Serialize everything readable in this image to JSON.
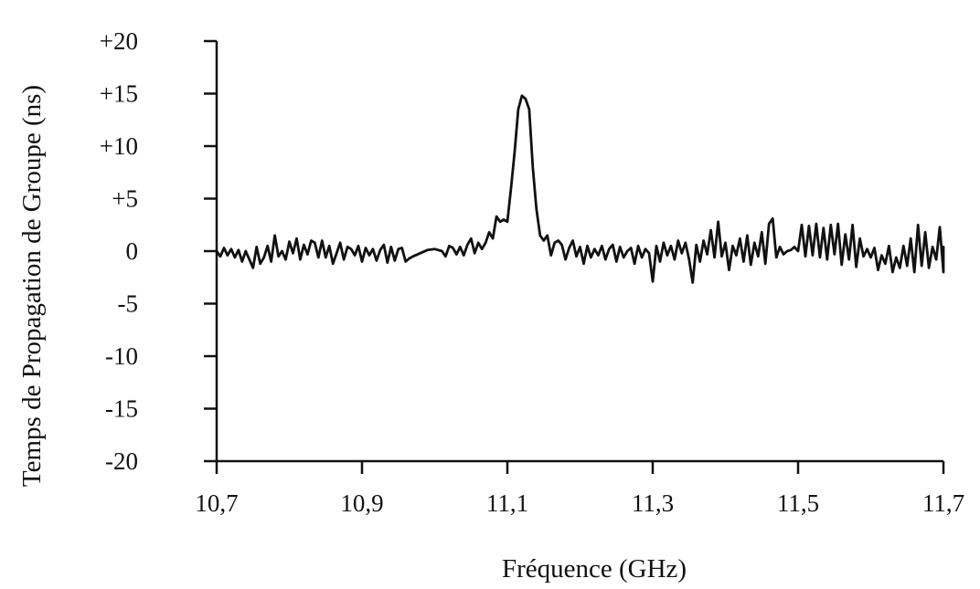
{
  "chart_data": {
    "type": "line",
    "title": "",
    "xlabel": "Fréquence (GHz)",
    "ylabel": "Temps de Propagation de Groupe (ns)",
    "xlim": [
      10.7,
      11.7
    ],
    "ylim": [
      -20,
      20
    ],
    "grid": false,
    "x_ticks": [
      10.7,
      10.9,
      11.1,
      11.3,
      11.5,
      11.7
    ],
    "x_tick_labels": [
      "10,7",
      "10,9",
      "11,1",
      "11,3",
      "11,5",
      "11,7"
    ],
    "y_ticks": [
      20,
      15,
      10,
      5,
      0,
      -5,
      -10,
      -15,
      -20
    ],
    "y_tick_labels": [
      "+20",
      "+15",
      "+10",
      "+5",
      "0",
      "-5",
      "-10",
      "-15",
      "-20"
    ],
    "series": [
      {
        "color": "#111111",
        "points": [
          [
            10.7,
            0.0
          ],
          [
            10.705,
            -0.5
          ],
          [
            10.71,
            0.3
          ],
          [
            10.715,
            -0.4
          ],
          [
            10.72,
            0.2
          ],
          [
            10.725,
            -0.6
          ],
          [
            10.73,
            0.1
          ],
          [
            10.735,
            -1.0
          ],
          [
            10.74,
            0.0
          ],
          [
            10.745,
            -0.8
          ],
          [
            10.75,
            -1.6
          ],
          [
            10.755,
            0.4
          ],
          [
            10.76,
            -1.2
          ],
          [
            10.765,
            -0.6
          ],
          [
            10.77,
            0.5
          ],
          [
            10.775,
            -1.0
          ],
          [
            10.78,
            1.5
          ],
          [
            10.785,
            -0.5
          ],
          [
            10.79,
            0.0
          ],
          [
            10.795,
            -0.8
          ],
          [
            10.8,
            0.9
          ],
          [
            10.805,
            -0.2
          ],
          [
            10.81,
            1.2
          ],
          [
            10.815,
            -0.8
          ],
          [
            10.82,
            0.6
          ],
          [
            10.825,
            -0.3
          ],
          [
            10.83,
            1.0
          ],
          [
            10.835,
            0.8
          ],
          [
            10.84,
            -0.6
          ],
          [
            10.845,
            1.0
          ],
          [
            10.85,
            -0.6
          ],
          [
            10.855,
            0.5
          ],
          [
            10.86,
            -1.2
          ],
          [
            10.865,
            -0.2
          ],
          [
            10.87,
            0.8
          ],
          [
            10.875,
            -0.8
          ],
          [
            10.88,
            0.4
          ],
          [
            10.885,
            0.2
          ],
          [
            10.89,
            -0.4
          ],
          [
            10.895,
            0.5
          ],
          [
            10.9,
            -1.0
          ],
          [
            10.905,
            0.3
          ],
          [
            10.91,
            -0.4
          ],
          [
            10.915,
            0.2
          ],
          [
            10.92,
            -0.9
          ],
          [
            10.925,
            0.1
          ],
          [
            10.93,
            0.6
          ],
          [
            10.935,
            -1.1
          ],
          [
            10.94,
            0.4
          ],
          [
            10.945,
            -0.9
          ],
          [
            10.95,
            0.2
          ],
          [
            10.955,
            0.3
          ],
          [
            10.96,
            -1.0
          ],
          [
            10.965,
            -0.7
          ],
          [
            10.97,
            -0.5
          ],
          [
            10.98,
            -0.2
          ],
          [
            10.99,
            0.1
          ],
          [
            11.0,
            0.2
          ],
          [
            11.01,
            0.0
          ],
          [
            11.015,
            -0.5
          ],
          [
            11.02,
            0.5
          ],
          [
            11.025,
            0.3
          ],
          [
            11.03,
            -0.3
          ],
          [
            11.035,
            0.4
          ],
          [
            11.04,
            -0.4
          ],
          [
            11.045,
            0.6
          ],
          [
            11.05,
            1.2
          ],
          [
            11.055,
            -0.2
          ],
          [
            11.06,
            0.8
          ],
          [
            11.065,
            0.2
          ],
          [
            11.07,
            0.8
          ],
          [
            11.075,
            1.8
          ],
          [
            11.08,
            1.2
          ],
          [
            11.085,
            3.3
          ],
          [
            11.09,
            2.8
          ],
          [
            11.095,
            3.0
          ],
          [
            11.1,
            2.8
          ],
          [
            11.105,
            6.0
          ],
          [
            11.11,
            9.5
          ],
          [
            11.115,
            13.5
          ],
          [
            11.12,
            14.8
          ],
          [
            11.125,
            14.5
          ],
          [
            11.13,
            13.5
          ],
          [
            11.135,
            8.0
          ],
          [
            11.14,
            4.0
          ],
          [
            11.145,
            1.5
          ],
          [
            11.15,
            1.0
          ],
          [
            11.155,
            1.5
          ],
          [
            11.16,
            -0.4
          ],
          [
            11.165,
            0.8
          ],
          [
            11.17,
            1.0
          ],
          [
            11.175,
            0.6
          ],
          [
            11.18,
            -0.8
          ],
          [
            11.185,
            0.3
          ],
          [
            11.19,
            1.0
          ],
          [
            11.195,
            -0.5
          ],
          [
            11.2,
            0.4
          ],
          [
            11.205,
            -1.2
          ],
          [
            11.21,
            0.5
          ],
          [
            11.215,
            -0.6
          ],
          [
            11.22,
            0.2
          ],
          [
            11.225,
            -0.4
          ],
          [
            11.23,
            0.5
          ],
          [
            11.235,
            -0.8
          ],
          [
            11.24,
            0.2
          ],
          [
            11.245,
            0.6
          ],
          [
            11.25,
            -1.0
          ],
          [
            11.255,
            0.4
          ],
          [
            11.26,
            -0.6
          ],
          [
            11.265,
            0.0
          ],
          [
            11.27,
            0.3
          ],
          [
            11.275,
            -1.2
          ],
          [
            11.28,
            0.5
          ],
          [
            11.285,
            -0.6
          ],
          [
            11.29,
            0.2
          ],
          [
            11.295,
            -0.2
          ],
          [
            11.3,
            -2.9
          ],
          [
            11.305,
            0.5
          ],
          [
            11.31,
            -1.0
          ],
          [
            11.315,
            0.8
          ],
          [
            11.32,
            -0.4
          ],
          [
            11.325,
            0.5
          ],
          [
            11.33,
            -0.8
          ],
          [
            11.335,
            1.0
          ],
          [
            11.34,
            -0.2
          ],
          [
            11.345,
            0.8
          ],
          [
            11.35,
            -0.8
          ],
          [
            11.355,
            -3.0
          ],
          [
            11.36,
            0.6
          ],
          [
            11.365,
            -1.0
          ],
          [
            11.37,
            1.0
          ],
          [
            11.375,
            -0.3
          ],
          [
            11.38,
            2.0
          ],
          [
            11.385,
            -0.6
          ],
          [
            11.39,
            2.8
          ],
          [
            11.395,
            -0.5
          ],
          [
            11.4,
            0.8
          ],
          [
            11.405,
            -1.8
          ],
          [
            11.41,
            0.5
          ],
          [
            11.415,
            -0.4
          ],
          [
            11.42,
            1.2
          ],
          [
            11.425,
            -1.0
          ],
          [
            11.43,
            1.5
          ],
          [
            11.435,
            -1.3
          ],
          [
            11.44,
            0.8
          ],
          [
            11.445,
            -0.5
          ],
          [
            11.45,
            1.8
          ],
          [
            11.455,
            -1.2
          ],
          [
            11.46,
            2.6
          ],
          [
            11.465,
            3.1
          ],
          [
            11.47,
            -0.6
          ],
          [
            11.475,
            0.4
          ],
          [
            11.48,
            -0.3
          ],
          [
            11.485,
            0.0
          ],
          [
            11.49,
            0.1
          ],
          [
            11.495,
            0.4
          ],
          [
            11.5,
            0.0
          ],
          [
            11.505,
            2.5
          ],
          [
            11.51,
            -0.5
          ],
          [
            11.515,
            2.4
          ],
          [
            11.52,
            -0.4
          ],
          [
            11.525,
            2.6
          ],
          [
            11.53,
            -0.6
          ],
          [
            11.535,
            2.2
          ],
          [
            11.54,
            -0.8
          ],
          [
            11.545,
            2.5
          ],
          [
            11.55,
            -0.3
          ],
          [
            11.555,
            2.6
          ],
          [
            11.56,
            -1.3
          ],
          [
            11.565,
            1.6
          ],
          [
            11.57,
            -0.8
          ],
          [
            11.575,
            2.5
          ],
          [
            11.58,
            -1.5
          ],
          [
            11.585,
            1.2
          ],
          [
            11.59,
            -0.5
          ],
          [
            11.595,
            0.2
          ],
          [
            11.6,
            -0.6
          ],
          [
            11.605,
            0.3
          ],
          [
            11.61,
            -1.8
          ],
          [
            11.615,
            -0.4
          ],
          [
            11.62,
            -1.2
          ],
          [
            11.625,
            0.5
          ],
          [
            11.63,
            -2.0
          ],
          [
            11.635,
            -0.6
          ],
          [
            11.64,
            -1.6
          ],
          [
            11.645,
            0.5
          ],
          [
            11.65,
            -1.4
          ],
          [
            11.655,
            1.2
          ],
          [
            11.66,
            -2.0
          ],
          [
            11.665,
            2.5
          ],
          [
            11.67,
            -1.4
          ],
          [
            11.675,
            1.8
          ],
          [
            11.68,
            -1.6
          ],
          [
            11.685,
            0.4
          ],
          [
            11.69,
            -0.8
          ],
          [
            11.695,
            2.3
          ],
          [
            11.7,
            -2.0
          ],
          [
            11.7,
            0.4
          ]
        ]
      }
    ]
  }
}
